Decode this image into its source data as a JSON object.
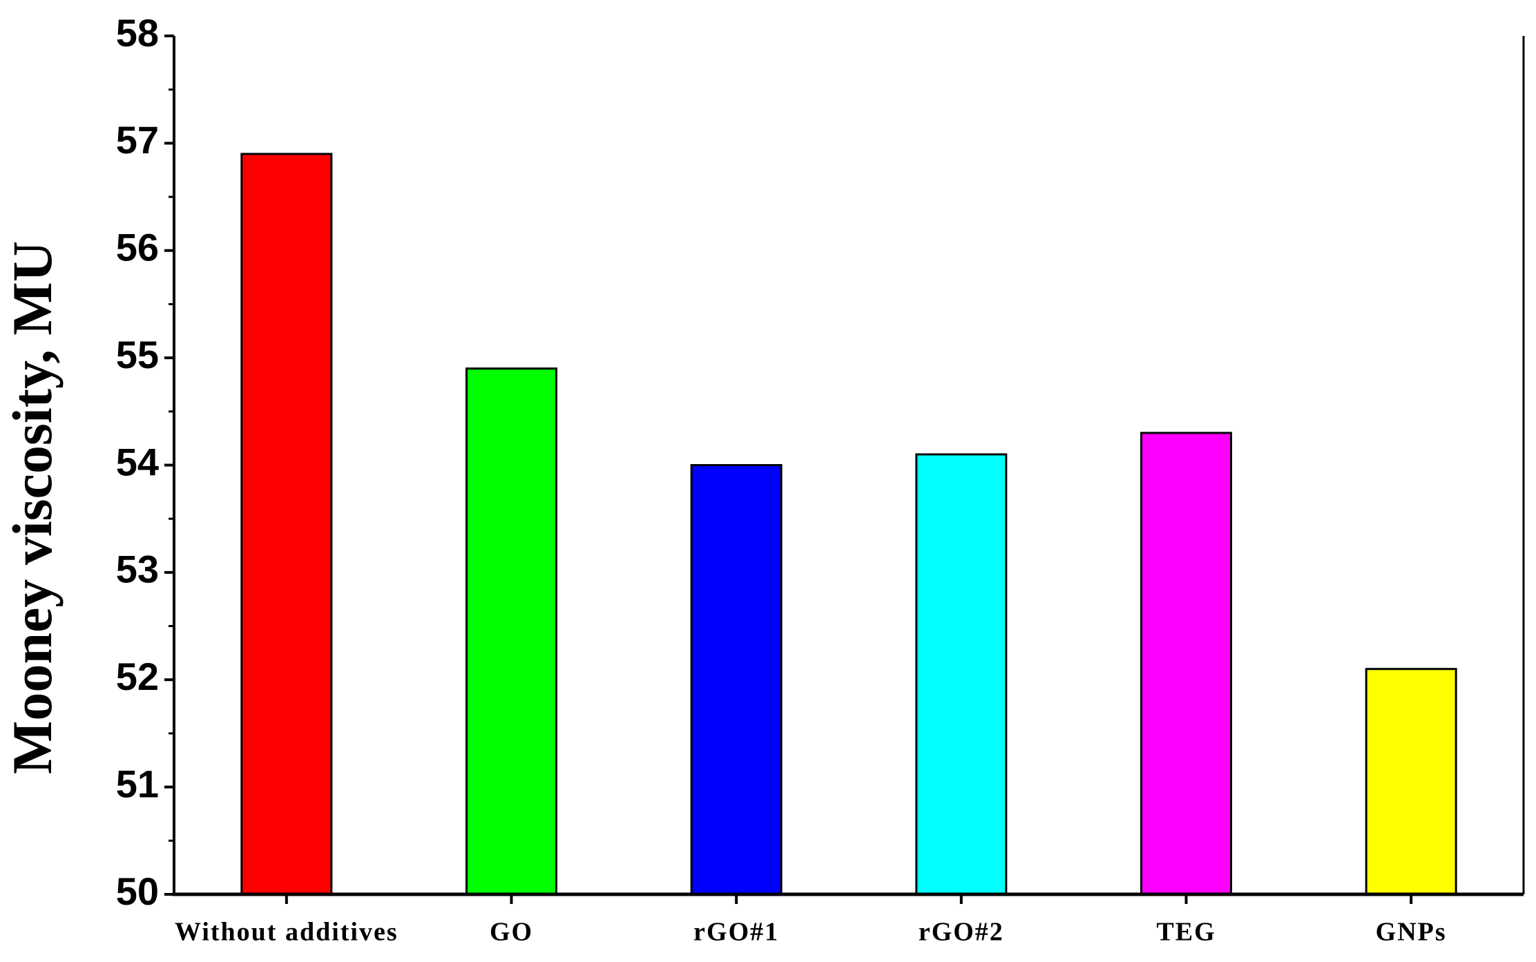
{
  "chart_data": {
    "type": "bar",
    "y_label": "Mooney viscosity, MU",
    "categories": [
      "Without additives",
      "GO",
      "rGO#1",
      "rGO#2",
      "TEG",
      "GNPs"
    ],
    "values": [
      56.9,
      54.9,
      54.0,
      54.1,
      54.3,
      52.1
    ],
    "colors": [
      "#ff0000",
      "#00ff00",
      "#0000ff",
      "#00ffff",
      "#ff00ff",
      "#ffff00"
    ],
    "ylim": [
      50,
      58
    ],
    "yticks": [
      50,
      51,
      52,
      53,
      54,
      55,
      56,
      57,
      58
    ],
    "yminorticks": [
      50.5,
      51.5,
      52.5,
      53.5,
      54.5,
      55.5,
      56.5,
      57.5
    ],
    "grid": false
  }
}
